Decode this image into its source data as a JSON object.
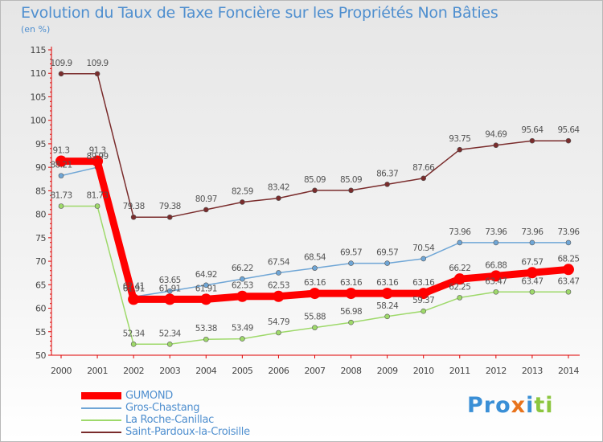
{
  "title": "Evolution du Taux de Taxe Foncière sur les Propriétés Non Bâties",
  "unit_label": "(en %)",
  "logo": {
    "parts": [
      "Pro",
      "x",
      "i",
      "ti"
    ],
    "colors": [
      "#3a8fd6",
      "#e8731c",
      "#3a8fd6",
      "#8cc63f"
    ]
  },
  "chart_data": {
    "type": "line",
    "title": "Evolution du Taux de Taxe Foncière sur les Propriétés Non Bâties",
    "ylabel": "(en %)",
    "xlabel": "",
    "ylim": [
      50,
      115
    ],
    "yticks": [
      "50",
      "55",
      "60",
      "65",
      "70",
      "75",
      "80",
      "85",
      "90",
      "95",
      "100",
      "105",
      "110",
      "115"
    ],
    "categories": [
      "2000",
      "2001",
      "2002",
      "2003",
      "2004",
      "2005",
      "2006",
      "2007",
      "2008",
      "2009",
      "2010",
      "2011",
      "2012",
      "2013",
      "2014"
    ],
    "grid": false,
    "legend_position": "bottom-left",
    "series": [
      {
        "name": "GUMOND",
        "color": "#ff0000",
        "emphasis": true,
        "values": [
          91.3,
          91.3,
          61.91,
          61.91,
          61.91,
          62.53,
          62.53,
          63.16,
          63.16,
          63.16,
          63.16,
          66.22,
          66.88,
          67.57,
          68.25
        ],
        "labels": [
          "91.3",
          "91.3",
          "61.91",
          "61.91",
          "61.91",
          "62.53",
          "62.53",
          "63.16",
          "63.16",
          "63.16",
          "63.16",
          "66.22",
          "66.88",
          "67.57",
          "68.25"
        ]
      },
      {
        "name": "Gros-Chastang",
        "color": "#6fa6d6",
        "emphasis": false,
        "values": [
          88.21,
          89.99,
          62.41,
          63.65,
          64.92,
          66.22,
          67.54,
          68.54,
          69.57,
          69.57,
          70.54,
          73.96,
          73.96,
          73.96,
          73.96
        ],
        "labels": [
          "88.21",
          "89.99",
          "62.41",
          "63.65",
          "64.92",
          "66.22",
          "67.54",
          "68.54",
          "69.57",
          "69.57",
          "70.54",
          "73.96",
          "73.96",
          "73.96",
          "73.96"
        ]
      },
      {
        "name": "La Roche-Canillac",
        "color": "#9ed96a",
        "emphasis": false,
        "values": [
          81.73,
          81.73,
          52.34,
          52.34,
          53.38,
          53.49,
          54.79,
          55.88,
          56.98,
          58.24,
          59.37,
          62.25,
          63.47,
          63.47,
          63.47
        ],
        "labels": [
          "81.73",
          "81.73",
          "52.34",
          "52.34",
          "53.38",
          "53.49",
          "54.79",
          "55.88",
          "56.98",
          "58.24",
          "59.37",
          "62.25",
          "63.47",
          "63.47",
          "63.47"
        ]
      },
      {
        "name": "Saint-Pardoux-la-Croisille",
        "color": "#7a2c2c",
        "emphasis": false,
        "values": [
          109.9,
          109.9,
          79.38,
          79.38,
          80.97,
          82.59,
          83.42,
          85.09,
          85.09,
          86.37,
          87.66,
          93.75,
          94.69,
          95.64,
          95.64
        ],
        "labels": [
          "109.9",
          "109.9",
          "79.38",
          "79.38",
          "80.97",
          "82.59",
          "83.42",
          "85.09",
          "85.09",
          "86.37",
          "87.66",
          "93.75",
          "94.69",
          "95.64",
          "95.64"
        ]
      }
    ]
  }
}
